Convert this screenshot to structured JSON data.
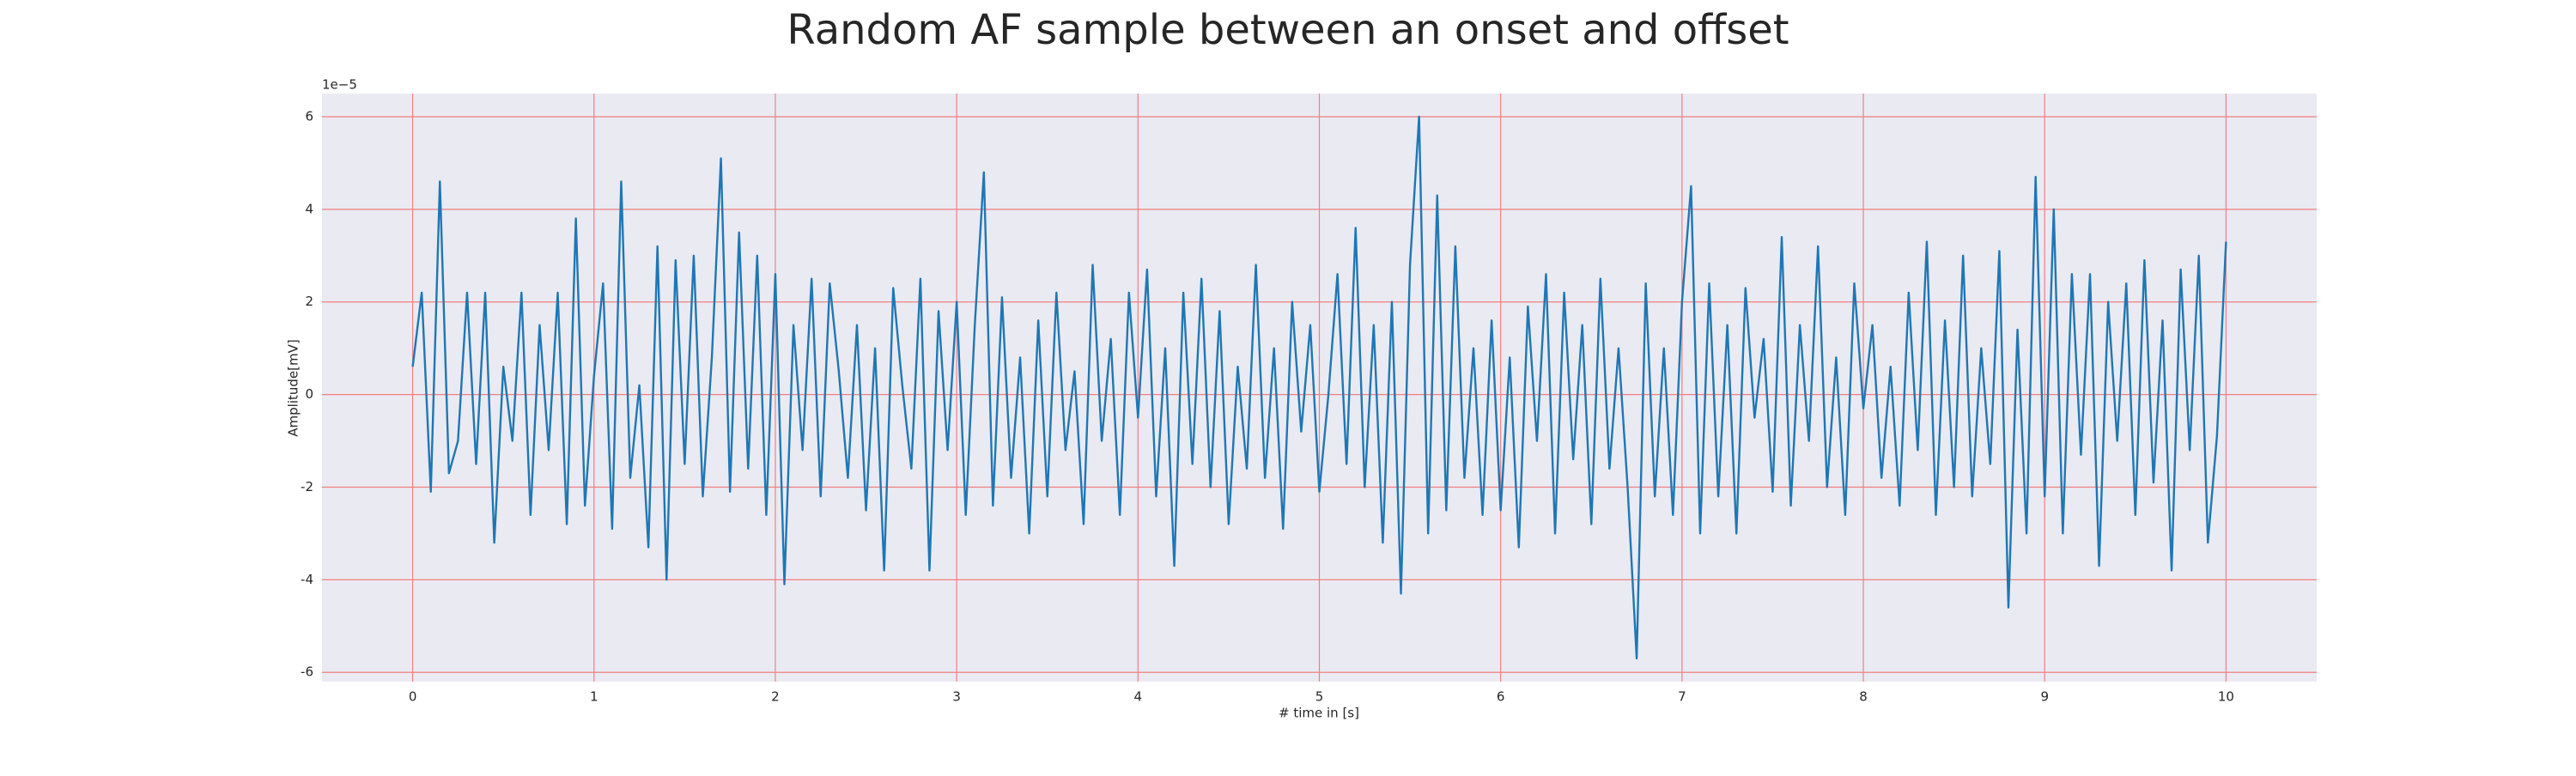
{
  "chart_data": {
    "type": "line",
    "title": "Random AF sample between an onset and offset",
    "xlabel": "# time in [s]",
    "ylabel": "Amplitude[mV]",
    "y_offset_label": "1e−5",
    "color": "#1f77b4",
    "grid": true,
    "grid_color": "#f08080",
    "background": "#eaeaf2",
    "xlim": [
      -0.5,
      10.5
    ],
    "ylim": [
      -6.2,
      6.5
    ],
    "xticks": [
      0,
      1,
      2,
      3,
      4,
      5,
      6,
      7,
      8,
      9,
      10
    ],
    "yticks": [
      -6,
      -4,
      -2,
      0,
      2,
      4,
      6
    ],
    "x": [
      0,
      0.05,
      0.1,
      0.15,
      0.2,
      0.25,
      0.3,
      0.35,
      0.4,
      0.45,
      0.5,
      0.55,
      0.6,
      0.65,
      0.7,
      0.75,
      0.8,
      0.85,
      0.9,
      0.95,
      1,
      1.05,
      1.1,
      1.15,
      1.2,
      1.25,
      1.3,
      1.35,
      1.4,
      1.45,
      1.5,
      1.55,
      1.6,
      1.65,
      1.7,
      1.75,
      1.8,
      1.85,
      1.9,
      1.95,
      2,
      2.05,
      2.1,
      2.15,
      2.2,
      2.25,
      2.3,
      2.35,
      2.4,
      2.45,
      2.5,
      2.55,
      2.6,
      2.65,
      2.7,
      2.75,
      2.8,
      2.85,
      2.9,
      2.95,
      3,
      3.05,
      3.1,
      3.15,
      3.2,
      3.25,
      3.3,
      3.35,
      3.4,
      3.45,
      3.5,
      3.55,
      3.6,
      3.65,
      3.7,
      3.75,
      3.8,
      3.85,
      3.9,
      3.95,
      4,
      4.05,
      4.1,
      4.15,
      4.2,
      4.25,
      4.3,
      4.35,
      4.4,
      4.45,
      4.5,
      4.55,
      4.6,
      4.65,
      4.7,
      4.75,
      4.8,
      4.85,
      4.9,
      4.95,
      5,
      5.05,
      5.1,
      5.15,
      5.2,
      5.25,
      5.3,
      5.35,
      5.4,
      5.45,
      5.5,
      5.55,
      5.6,
      5.65,
      5.7,
      5.75,
      5.8,
      5.85,
      5.9,
      5.95,
      6,
      6.05,
      6.1,
      6.15,
      6.2,
      6.25,
      6.3,
      6.35,
      6.4,
      6.45,
      6.5,
      6.55,
      6.6,
      6.65,
      6.7,
      6.75,
      6.8,
      6.85,
      6.9,
      6.95,
      7,
      7.05,
      7.1,
      7.15,
      7.2,
      7.25,
      7.3,
      7.35,
      7.4,
      7.45,
      7.5,
      7.55,
      7.6,
      7.65,
      7.7,
      7.75,
      7.8,
      7.85,
      7.9,
      7.95,
      8,
      8.05,
      8.1,
      8.15,
      8.2,
      8.25,
      8.3,
      8.35,
      8.4,
      8.45,
      8.5,
      8.55,
      8.6,
      8.65,
      8.7,
      8.75,
      8.8,
      8.85,
      8.9,
      8.95,
      9,
      9.05,
      9.1,
      9.15,
      9.2,
      9.25,
      9.3,
      9.35,
      9.4,
      9.45,
      9.5,
      9.55,
      9.6,
      9.65,
      9.7,
      9.75,
      9.8,
      9.85,
      9.9,
      9.95,
      10
    ],
    "values": [
      0.6,
      2.2,
      -2.1,
      4.6,
      -1.7,
      -1.0,
      2.2,
      -1.5,
      2.2,
      -3.2,
      0.6,
      -1.0,
      2.2,
      -2.6,
      1.5,
      -1.2,
      2.2,
      -2.8,
      3.8,
      -2.4,
      0.4,
      2.4,
      -2.9,
      4.6,
      -1.8,
      0.2,
      -3.3,
      3.2,
      -4.0,
      2.9,
      -1.5,
      3.0,
      -2.2,
      0.8,
      5.1,
      -2.1,
      3.5,
      -1.6,
      3.0,
      -2.6,
      2.6,
      -4.1,
      1.5,
      -1.2,
      2.5,
      -2.2,
      2.4,
      0.5,
      -1.8,
      1.5,
      -2.5,
      1.0,
      -3.8,
      2.3,
      0.2,
      -1.6,
      2.5,
      -3.8,
      1.8,
      -1.2,
      2.0,
      -2.6,
      1.5,
      4.8,
      -2.4,
      2.1,
      -1.8,
      0.8,
      -3.0,
      1.6,
      -2.2,
      2.2,
      -1.2,
      0.5,
      -2.8,
      2.8,
      -1.0,
      1.2,
      -2.6,
      2.2,
      -0.5,
      2.7,
      -2.2,
      1.0,
      -3.7,
      2.2,
      -1.5,
      2.5,
      -2.0,
      1.8,
      -2.8,
      0.6,
      -1.6,
      2.8,
      -1.8,
      1.0,
      -2.9,
      2.0,
      -0.8,
      1.5,
      -2.1,
      0.0,
      2.6,
      -1.5,
      3.6,
      -2.0,
      1.5,
      -3.2,
      2.0,
      -4.3,
      2.8,
      6.0,
      -3.0,
      4.3,
      -2.5,
      3.2,
      -1.8,
      1.0,
      -2.6,
      1.6,
      -2.5,
      0.8,
      -3.3,
      1.9,
      -1.0,
      2.6,
      -3.0,
      2.2,
      -1.4,
      1.5,
      -2.8,
      2.5,
      -1.6,
      1.0,
      -2.0,
      -5.7,
      2.4,
      -2.2,
      1.0,
      -2.6,
      2.0,
      4.5,
      -3.0,
      2.4,
      -2.2,
      1.5,
      -3.0,
      2.3,
      -0.5,
      1.2,
      -2.1,
      3.4,
      -2.4,
      1.5,
      -1.0,
      3.2,
      -2.0,
      0.8,
      -2.6,
      2.4,
      -0.3,
      1.5,
      -1.8,
      0.6,
      -2.4,
      2.2,
      -1.2,
      3.3,
      -2.6,
      1.6,
      -2.0,
      3.0,
      -2.2,
      1.0,
      -1.5,
      3.1,
      -4.6,
      1.4,
      -3.0,
      4.7,
      -2.2,
      4.0,
      -3.0,
      2.6,
      -1.3,
      2.6,
      -3.7,
      2.0,
      -1.0,
      2.4,
      -2.6,
      2.9,
      -1.9,
      1.6,
      -3.8,
      2.7,
      -1.2,
      3.0,
      -3.2,
      -0.9,
      3.3
    ]
  }
}
